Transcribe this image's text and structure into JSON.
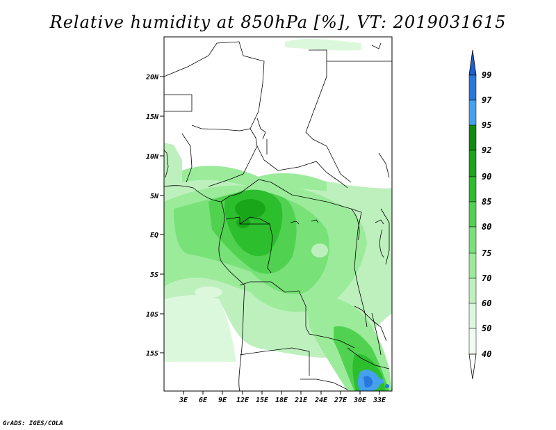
{
  "title": "Relative humidity at 850hPa [%], VT: 2019031615",
  "credit": "GrADS: IGES/COLA",
  "lat_ticks": [
    "20N",
    "15N",
    "10N",
    "5N",
    "EQ",
    "5S",
    "10S",
    "15S"
  ],
  "lon_ticks": [
    "3E",
    "6E",
    "9E",
    "12E",
    "15E",
    "18E",
    "21E",
    "24E",
    "27E",
    "30E",
    "33E"
  ],
  "colorbar": {
    "levels": [
      "99",
      "97",
      "95",
      "92",
      "90",
      "85",
      "80",
      "75",
      "70",
      "60",
      "50",
      "40"
    ],
    "colors": [
      "#1e5fc8",
      "#2878dc",
      "#46a0f0",
      "#0f8c0f",
      "#19a619",
      "#2dbe2d",
      "#50d250",
      "#78e178",
      "#9beb9b",
      "#bef0be",
      "#dcf8dc",
      "#f0fcf0",
      "#ffffff"
    ],
    "units": "%"
  }
}
